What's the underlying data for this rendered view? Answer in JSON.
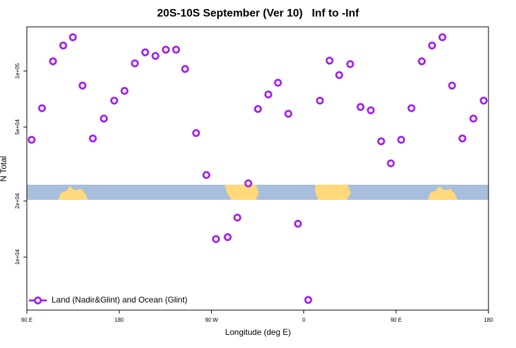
{
  "chart_data": {
    "type": "scatter",
    "title": "20S-10S September (Ver 10)   Inf to -Inf",
    "x_label": "Longitude (deg E)",
    "y_label": "N Total",
    "xlim": [
      90,
      540
    ],
    "xticks": [
      {
        "value": 90,
        "label": "90 E"
      },
      {
        "value": 180,
        "label": "180"
      },
      {
        "value": 270,
        "label": "90 W"
      },
      {
        "value": 360,
        "label": "0"
      },
      {
        "value": 450,
        "label": "90 E"
      },
      {
        "value": 540,
        "label": "180"
      }
    ],
    "ylim": [
      5190,
      172600
    ],
    "ylog": true,
    "yticks": [
      {
        "value": 10000,
        "label": "1e+04"
      },
      {
        "value": 20000,
        "label": "2e+04"
      },
      {
        "value": 50000,
        "label": "5e+04"
      },
      {
        "value": 100000,
        "label": "1e+05"
      }
    ],
    "legend": "bottom-left",
    "series": [
      {
        "name": "Land (Nadir&Glint) and Ocean (Glint)",
        "color": "#a020f0",
        "x": [
          94.7,
          104.8,
          115.5,
          125.5,
          134.9,
          144.3,
          154.4,
          165.1,
          175.2,
          185.2,
          195.3,
          205.4,
          215.4,
          225.5,
          235.5,
          244.3,
          255.0,
          265.0,
          274.4,
          285.8,
          295.2,
          305.9,
          315.3,
          325.4,
          334.8,
          344.9,
          354.3,
          364.3,
          375.7,
          385.1,
          394.5,
          405.2,
          415.3,
          425.3,
          435.4,
          444.8,
          454.9,
          464.9,
          475.0,
          485.0,
          495.1,
          504.5,
          514.6,
          525.3,
          535.3
        ],
        "values": [
          42700,
          63100,
          112700,
          137000,
          151800,
          83500,
          43400,
          55500,
          69300,
          78200,
          109900,
          125900,
          120500,
          130200,
          130200,
          102500,
          46400,
          27600,
          12500,
          12800,
          16300,
          24900,
          62500,
          74800,
          86500,
          58900,
          15100,
          5890,
          69300,
          113700,
          95100,
          108900,
          64100,
          61500,
          41900,
          31900,
          42700,
          63100,
          112700,
          137000,
          151800,
          83500,
          43400,
          55500,
          69300
        ]
      }
    ]
  }
}
